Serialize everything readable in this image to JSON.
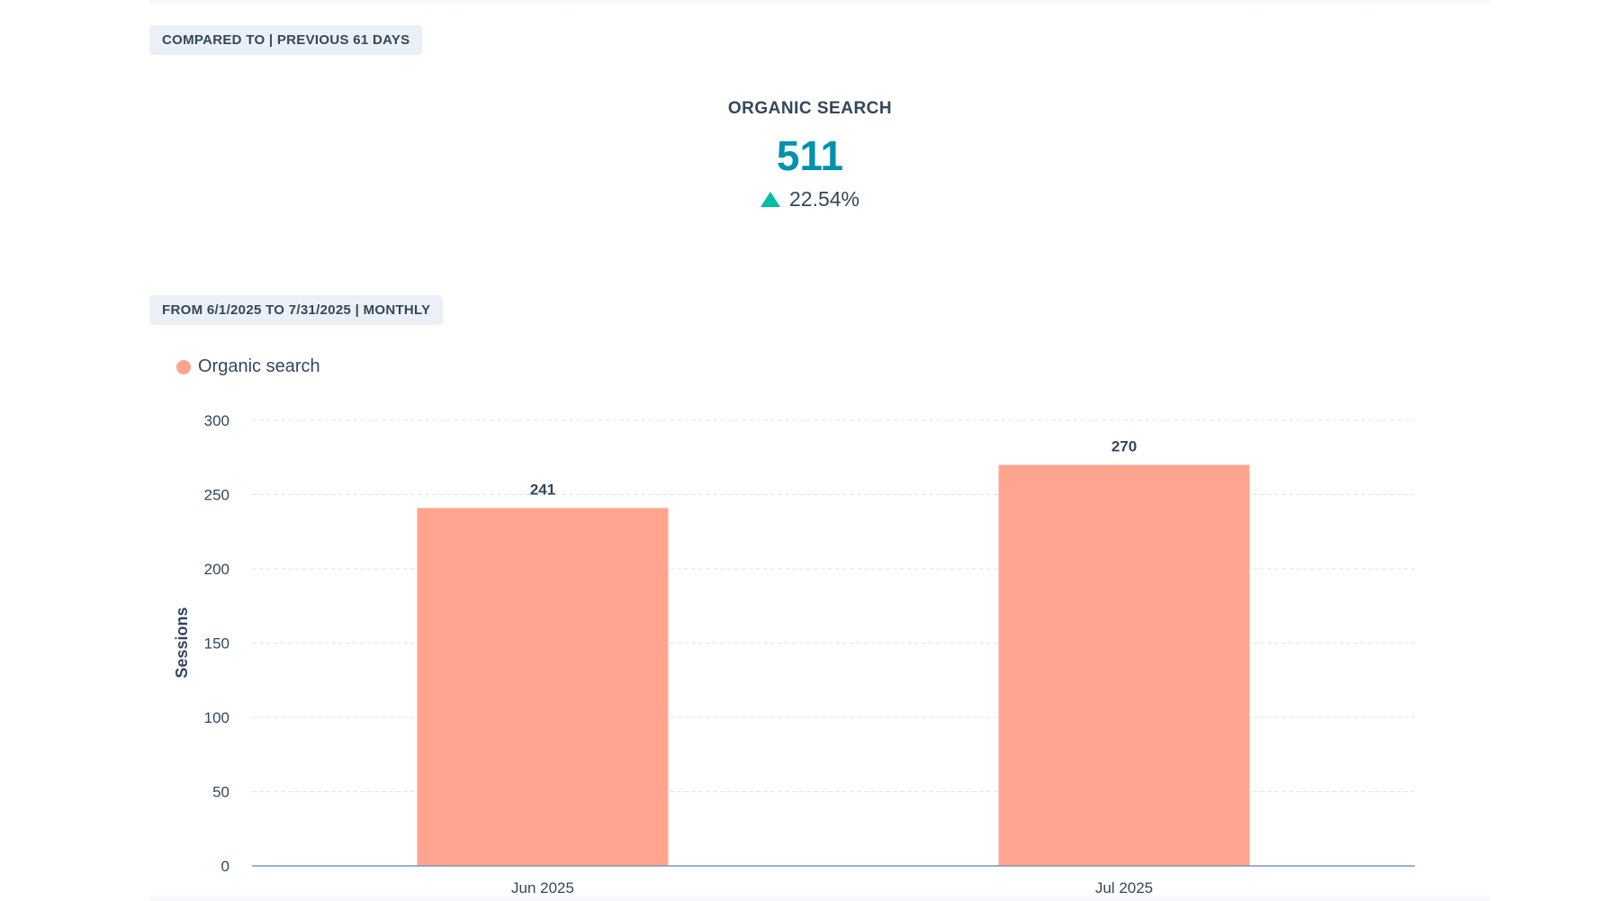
{
  "comparison_badge": "COMPARED TO | PREVIOUS 61 DAYS",
  "kpi": {
    "title": "ORGANIC SEARCH",
    "value": "511",
    "change": "22.54%",
    "change_direction": "up",
    "change_icon": "triangle-up-icon",
    "value_color": "#0091ae",
    "change_color": "#00bda5"
  },
  "range_badge": "FROM 6/1/2025 TO 7/31/2025 | MONTHLY",
  "chart_data": {
    "type": "bar",
    "categories": [
      "Jun 2025",
      "Jul 2025"
    ],
    "series": [
      {
        "name": "Organic search",
        "values": [
          241,
          270
        ],
        "color": "#ffa58f"
      }
    ],
    "data_labels": [
      "241",
      "270"
    ],
    "xlabel": "",
    "ylabel": "Sessions",
    "ylim": [
      0,
      300
    ],
    "yticks": [
      0,
      50,
      100,
      150,
      200,
      250,
      300
    ],
    "grid": true,
    "legend_placement": "top-left"
  }
}
